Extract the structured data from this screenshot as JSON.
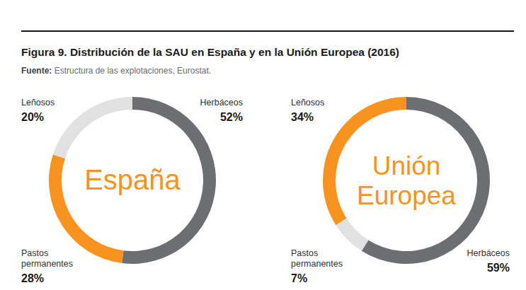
{
  "title": "Figura 9. Distribución de la SAU en España y en la Unión Europea (2016)",
  "subtitle": "Fuente: Estructura de las explotaciones, Eurostat.",
  "chart_data": [
    {
      "type": "donut",
      "title": "España",
      "categories": [
        "Herbáceos",
        "Pastos permanentes",
        "Leñosos"
      ],
      "values": [
        52,
        28,
        20
      ],
      "value_labels": [
        "52%",
        "28%",
        "20%"
      ],
      "colors": [
        "#6d6e71",
        "#f7931e",
        "#e1e1e1"
      ],
      "data_labels": true
    },
    {
      "type": "donut",
      "title": "Unión Europea",
      "categories": [
        "Herbáceos",
        "Pastos permanentes",
        "Leñosos"
      ],
      "values": [
        59,
        7,
        34
      ],
      "value_labels": [
        "59%",
        "7%",
        "34%"
      ],
      "colors": [
        "#6d6e71",
        "#e1e1e1",
        "#f7931e"
      ],
      "data_labels": true
    }
  ]
}
